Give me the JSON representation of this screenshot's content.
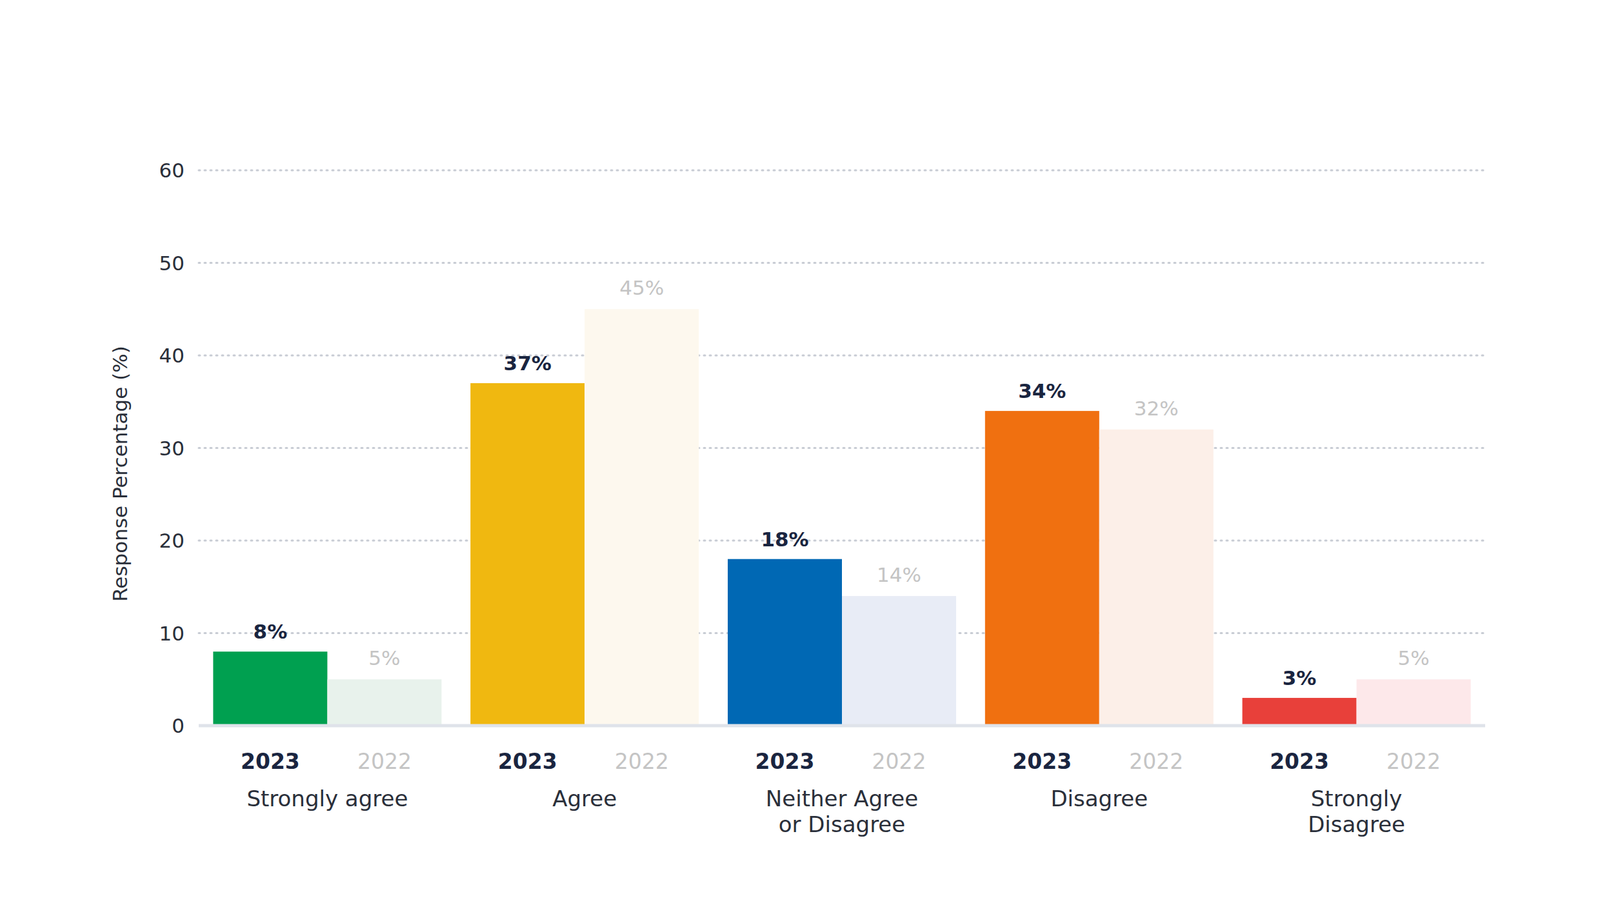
{
  "chart_data": {
    "type": "bar",
    "y_label": "Response Percentage (%)",
    "categories": [
      "Strongly agree",
      "Agree",
      "Neither Agree or Disagree",
      "Disagree",
      "Strongly Disagree"
    ],
    "series": [
      {
        "name": "2023",
        "colors": [
          "#00a050",
          "#f0b810",
          "#0068b4",
          "#f07010",
          "#e8403a"
        ],
        "values": [
          8,
          37,
          18,
          34,
          3
        ],
        "value_labels": [
          "8%",
          "37%",
          "18%",
          "34%",
          "3%"
        ]
      },
      {
        "name": "2022",
        "colors": [
          "#e8f2ec",
          "#fdf8ee",
          "#e8ecf6",
          "#fcefe8",
          "#fde8ea"
        ],
        "values": [
          5,
          45,
          14,
          32,
          5
        ],
        "value_labels": [
          "5%",
          "45%",
          "14%",
          "32%",
          "5%"
        ]
      }
    ],
    "ylim": [
      0,
      60
    ],
    "yticks": [
      0,
      10,
      20,
      30,
      40,
      50,
      60
    ],
    "grid": true,
    "data_labels": true
  }
}
